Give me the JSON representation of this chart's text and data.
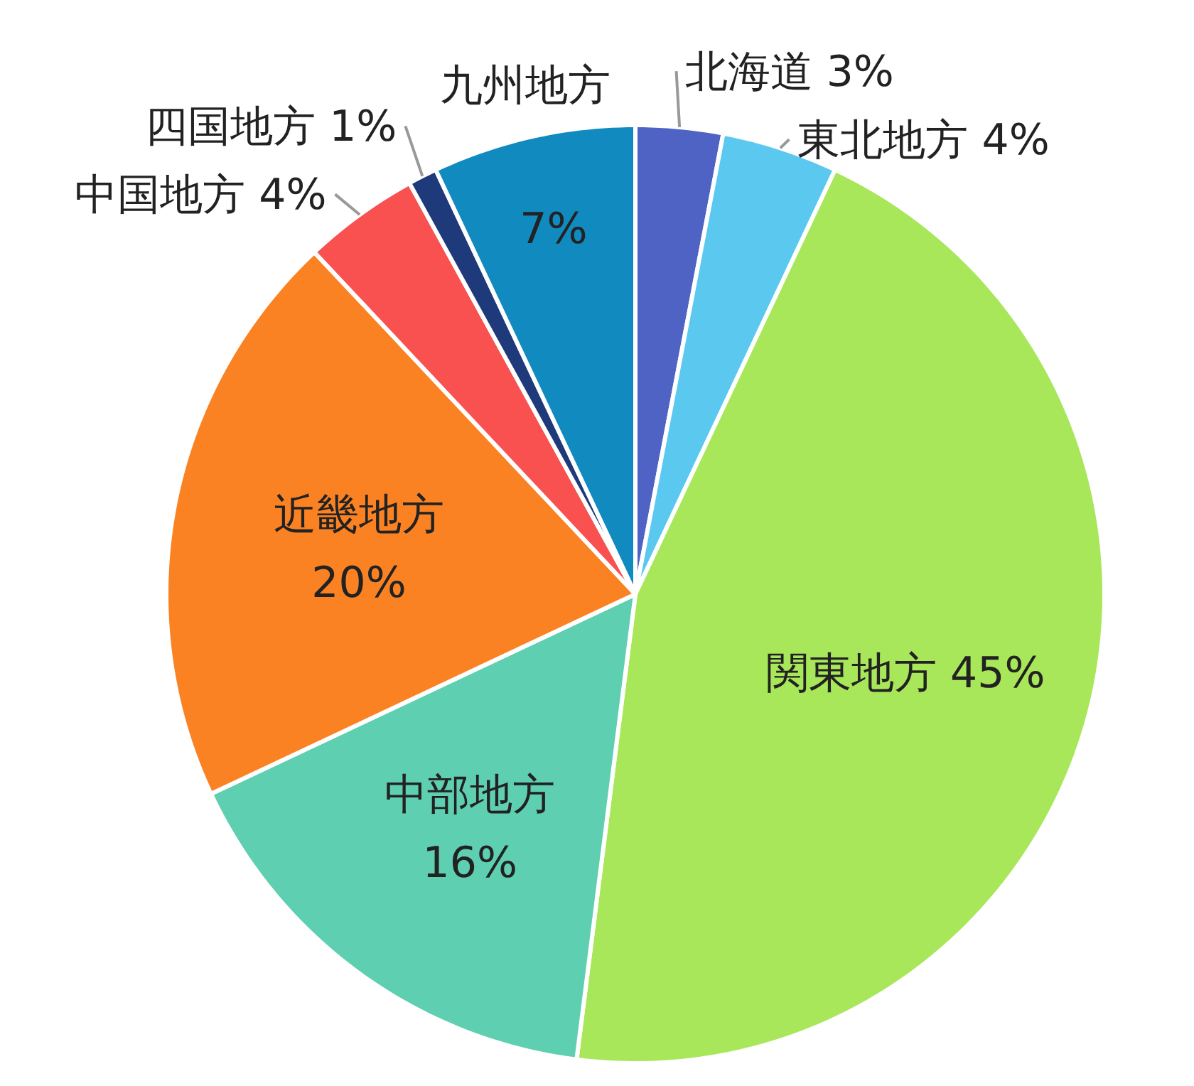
{
  "chart_data": {
    "type": "pie",
    "categories": [
      "北海道",
      "東北地方",
      "関東地方",
      "中部地方",
      "近畿地方",
      "中国地方",
      "四国地方",
      "九州地方"
    ],
    "values": [
      3,
      4,
      45,
      16,
      20,
      4,
      1,
      7
    ],
    "value_labels": [
      "3%",
      "4%",
      "45%",
      "16%",
      "20%",
      "4%",
      "1%",
      "7%"
    ],
    "colors": [
      "#4e63c4",
      "#5bc8f0",
      "#a8e65a",
      "#5ecfb0",
      "#fb8223",
      "#f95050",
      "#1f3a7a",
      "#118abf"
    ]
  }
}
